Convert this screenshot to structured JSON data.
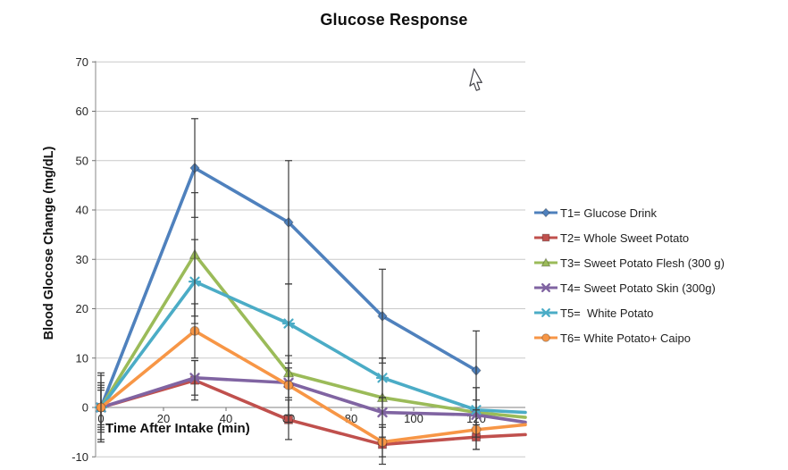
{
  "chart_data": {
    "type": "line",
    "title": "Glucose Response",
    "xlabel": "Time After Intake (min)",
    "ylabel": "Blood Glocose Change (mg/dL)",
    "x": [
      0,
      30,
      60,
      90,
      120
    ],
    "x_ticks": [
      0,
      20,
      40,
      60,
      80,
      100,
      120
    ],
    "y_ticks": [
      -10,
      0,
      10,
      20,
      30,
      40,
      50,
      60,
      70
    ],
    "ylim": [
      -10,
      70
    ],
    "grid": "horizontal",
    "legend_position": "right",
    "error_bar_color": "#3a3a3a",
    "gridline_color": "#c9c9c9",
    "axis_color": "#9b9b9b",
    "series": [
      {
        "name": "T1= Glucose Drink",
        "color": "#4F81BD",
        "marker": "diamond",
        "values": [
          0,
          48.5,
          37.5,
          18.5,
          7.5
        ],
        "errors": [
          5,
          10,
          12.5,
          9.5,
          8
        ],
        "edge_value": null
      },
      {
        "name": "T2= Whole Sweet Potato",
        "color": "#C0504D",
        "marker": "square",
        "values": [
          0,
          5.5,
          -2.5,
          -7.5,
          -6
        ],
        "errors": [
          4,
          4,
          4,
          4,
          2.5
        ],
        "edge_value": -5.5
      },
      {
        "name": "T3= Sweet Potato Flesh (300 g)",
        "color": "#9BBB59",
        "marker": "triangle",
        "values": [
          0,
          31,
          7,
          2,
          -1
        ],
        "errors": [
          6.5,
          12.5,
          10,
          8,
          5
        ],
        "edge_value": -2
      },
      {
        "name": "T4= Sweet Potato Skin (300g)",
        "color": "#8064A2",
        "marker": "x",
        "values": [
          0,
          6,
          5,
          -1,
          -1.5
        ],
        "errors": [
          3.5,
          3.5,
          3,
          3,
          3
        ],
        "edge_value": -3
      },
      {
        "name": "T5=  White Potato",
        "color": "#4BACC6",
        "marker": "asterisk",
        "values": [
          0,
          25.5,
          17,
          6,
          -0.5
        ],
        "errors": [
          7,
          8.5,
          8,
          4,
          4.5
        ],
        "edge_value": -1
      },
      {
        "name": "T6= White Potato+ Caipo",
        "color": "#F79646",
        "marker": "circle",
        "values": [
          0,
          15.5,
          4.5,
          -7,
          -4.5
        ],
        "errors": [
          4.5,
          5.5,
          6,
          3,
          4
        ],
        "edge_value": -3.5
      }
    ]
  },
  "cursor": {
    "icon": "arrow-pointer"
  }
}
